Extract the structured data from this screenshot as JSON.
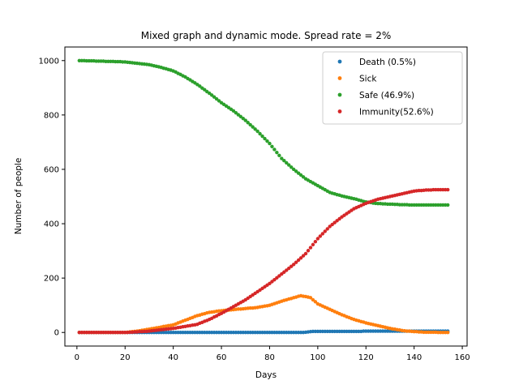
{
  "chart_data": {
    "type": "scatter",
    "title": "Mixed graph and dynamic mode. Spread rate = 2%",
    "xlabel": "Days",
    "ylabel": "Number of people",
    "xlim": [
      -5,
      162
    ],
    "ylim": [
      -50,
      1050
    ],
    "xticks": [
      0,
      20,
      40,
      60,
      80,
      100,
      120,
      140,
      160
    ],
    "yticks": [
      0,
      200,
      400,
      600,
      800,
      1000
    ],
    "grid": false,
    "legend_position": "top-right",
    "x_start": 1,
    "x_end": 154,
    "series": [
      {
        "name": "Death (0.5%)",
        "color": "#1f77b4",
        "x": [
          1,
          94,
          98,
          140,
          154
        ],
        "y": [
          0,
          0,
          4,
          5,
          5
        ]
      },
      {
        "name": "Sick",
        "color": "#ff7f0e",
        "x": [
          1,
          20,
          25,
          30,
          35,
          40,
          45,
          50,
          55,
          60,
          65,
          70,
          75,
          80,
          85,
          90,
          93,
          97,
          100,
          105,
          110,
          115,
          120,
          125,
          130,
          135,
          140,
          145,
          154
        ],
        "y": [
          0,
          0,
          5,
          12,
          20,
          28,
          45,
          62,
          74,
          80,
          84,
          88,
          92,
          100,
          115,
          128,
          135,
          128,
          105,
          85,
          65,
          48,
          35,
          25,
          15,
          7,
          3,
          1,
          0
        ]
      },
      {
        "name": "Safe (46.9%)",
        "color": "#2ca02c",
        "x": [
          1,
          10,
          20,
          25,
          30,
          35,
          40,
          45,
          50,
          55,
          60,
          65,
          70,
          75,
          80,
          85,
          90,
          95,
          100,
          105,
          110,
          115,
          120,
          125,
          130,
          135,
          140,
          145,
          154
        ],
        "y": [
          1000,
          998,
          995,
          990,
          985,
          975,
          962,
          940,
          912,
          880,
          845,
          815,
          780,
          740,
          695,
          640,
          600,
          565,
          540,
          515,
          502,
          492,
          480,
          474,
          472,
          470,
          469,
          469,
          469
        ]
      },
      {
        "name": "Immunity(52.6%)",
        "color": "#d62728",
        "x": [
          1,
          20,
          25,
          30,
          35,
          40,
          45,
          50,
          55,
          60,
          65,
          70,
          75,
          80,
          85,
          90,
          95,
          100,
          105,
          110,
          115,
          120,
          125,
          130,
          135,
          140,
          145,
          150,
          154
        ],
        "y": [
          0,
          0,
          2,
          5,
          10,
          15,
          22,
          30,
          48,
          70,
          95,
          120,
          150,
          180,
          215,
          250,
          290,
          345,
          390,
          425,
          455,
          475,
          490,
          500,
          510,
          520,
          524,
          525,
          525
        ]
      }
    ]
  }
}
